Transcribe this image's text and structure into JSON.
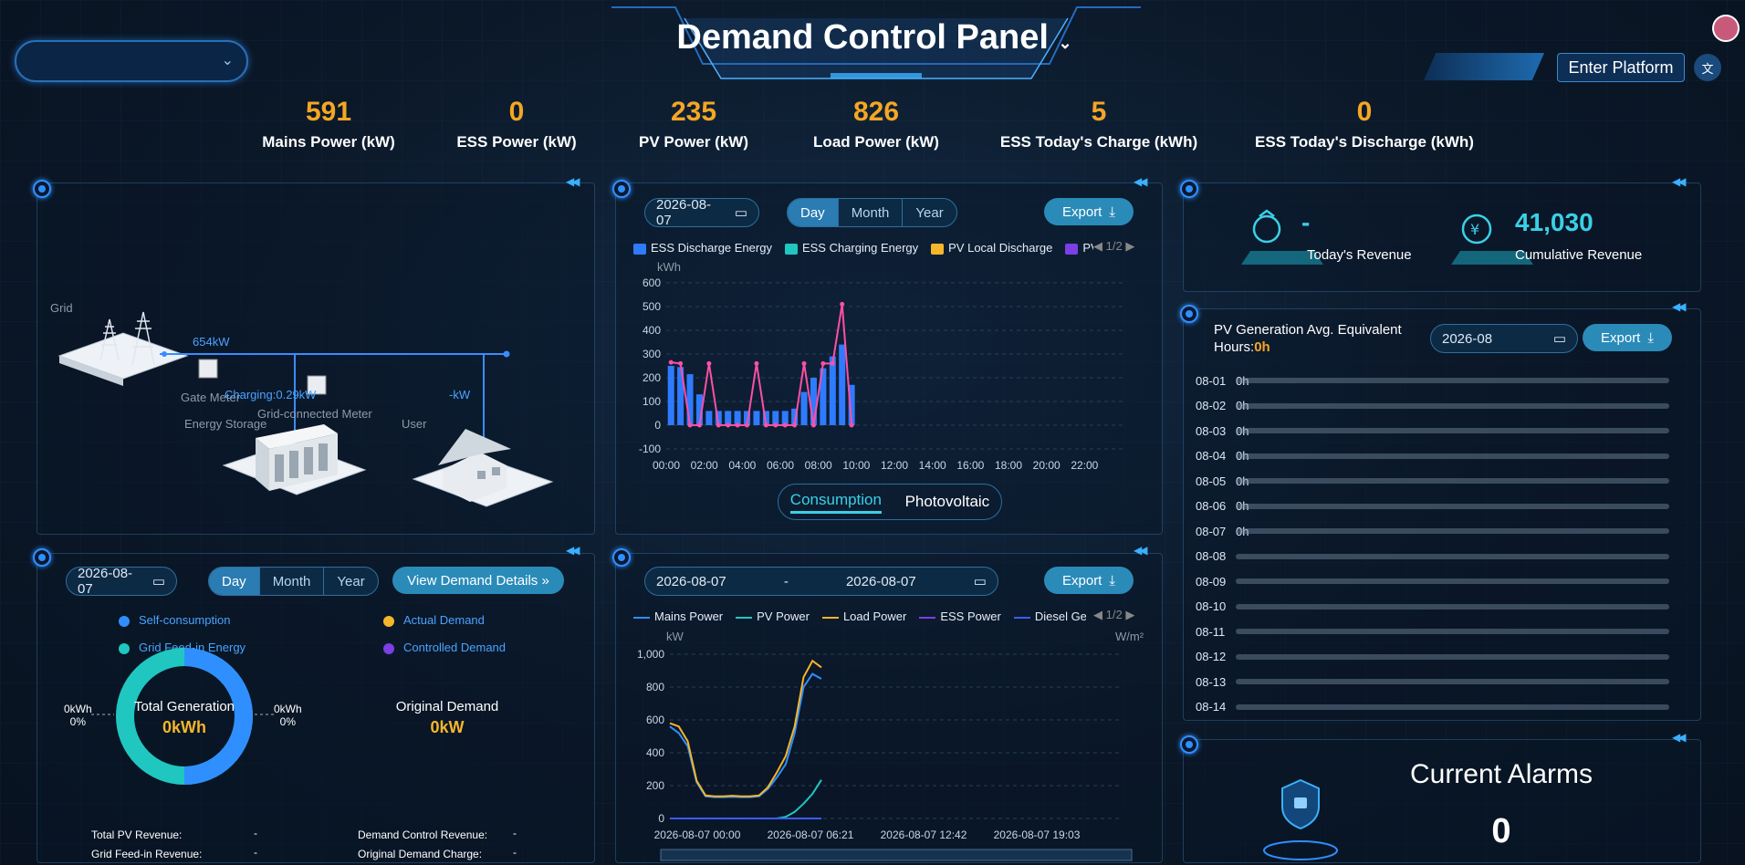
{
  "header": {
    "title": "Demand Control Panel",
    "enter_platform": "Enter Platform",
    "site_select": ""
  },
  "kpis": [
    {
      "value": "591",
      "label": "Mains Power (kW)"
    },
    {
      "value": "0",
      "label": "ESS Power (kW)"
    },
    {
      "value": "235",
      "label": "PV Power (kW)"
    },
    {
      "value": "826",
      "label": "Load Power (kW)"
    },
    {
      "value": "5",
      "label": "ESS Today's Charge (kWh)"
    },
    {
      "value": "0",
      "label": "ESS Today's Discharge (kWh)"
    }
  ],
  "topology": {
    "grid": "Grid",
    "grid_power": "654kW",
    "gate_meter": "Gate Meter",
    "charging": "Charging:0.29kW",
    "grid_meter": "Grid-connected Meter",
    "user_power": "-kW",
    "energy_storage": "Energy Storage",
    "user": "User"
  },
  "energy_chart": {
    "date": "2026-08-07",
    "tabs": [
      "Day",
      "Month",
      "Year"
    ],
    "active_tab": "Day",
    "export": "Export",
    "legend": [
      "ESS Discharge Energy",
      "ESS Charging Energy",
      "PV Local Discharge",
      "PV l"
    ],
    "pager": "1/2",
    "unit": "kWh",
    "switch": [
      "Consumption",
      "Photovoltaic"
    ]
  },
  "chart_data": [
    {
      "type": "bar",
      "title": "",
      "ylabel": "kWh",
      "ylim": [
        -100,
        600
      ],
      "yticks": [
        "600",
        "500",
        "400",
        "300",
        "200",
        "100",
        "0",
        "-100"
      ],
      "xticks": [
        "00:00",
        "02:00",
        "04:00",
        "06:00",
        "08:00",
        "10:00",
        "12:00",
        "14:00",
        "16:00",
        "18:00",
        "20:00",
        "22:00"
      ],
      "x": [
        0.25,
        0.75,
        1.25,
        1.75,
        2.25,
        2.75,
        3.25,
        3.75,
        4.25,
        4.75,
        5.25,
        5.75,
        6.25,
        6.75,
        7.25,
        7.75,
        8.25,
        8.75,
        9.25,
        9.75
      ],
      "series": [
        {
          "name": "ESS Discharge Energy",
          "color": "#2f7bff",
          "values": [
            250,
            245,
            215,
            130,
            60,
            60,
            60,
            60,
            60,
            60,
            60,
            60,
            60,
            70,
            140,
            200,
            240,
            290,
            340,
            170
          ]
        },
        {
          "name": "ESS Charging Energy",
          "color": "#1fc7c0",
          "values": [
            0,
            0,
            0,
            0,
            0,
            0,
            0,
            0,
            0,
            0,
            0,
            0,
            0,
            0,
            0,
            0,
            0,
            0,
            0,
            0
          ]
        },
        {
          "name": "PV Local Discharge",
          "color": "#f5b62b",
          "values": [
            0,
            0,
            0,
            0,
            0,
            0,
            0,
            0,
            0,
            0,
            0,
            0,
            0,
            0,
            0,
            0,
            0,
            0,
            0,
            0
          ]
        },
        {
          "name": "PV l",
          "color": "#7b3fe4",
          "values": [
            0,
            0,
            0,
            0,
            0,
            0,
            0,
            0,
            0,
            0,
            0,
            0,
            0,
            0,
            0,
            0,
            0,
            0,
            0,
            0
          ]
        },
        {
          "type": "line",
          "color": "#ff4fa6",
          "values": [
            265,
            260,
            0,
            0,
            260,
            0,
            0,
            0,
            0,
            260,
            0,
            0,
            0,
            0,
            260,
            0,
            260,
            260,
            510,
            0
          ]
        }
      ]
    },
    {
      "type": "line",
      "title": "",
      "ylabel": "kW",
      "y2label": "W/m²",
      "ylim": [
        0,
        1000
      ],
      "yticks": [
        "1,000",
        "800",
        "600",
        "400",
        "200",
        "0"
      ],
      "xticks": [
        "2026-08-07 00:00",
        "2026-08-07 06:21",
        "2026-08-07 12:42",
        "2026-08-07 19:03"
      ],
      "x_hours": [
        0,
        0.5,
        1,
        1.5,
        2,
        2.5,
        3,
        3.5,
        4,
        4.5,
        5,
        5.5,
        6,
        6.5,
        7,
        7.5,
        8,
        8.5,
        9,
        9.5
      ],
      "series": [
        {
          "name": "Mains Power",
          "color": "#2f8fff",
          "values": [
            560,
            520,
            440,
            220,
            135,
            130,
            130,
            132,
            130,
            130,
            135,
            180,
            250,
            330,
            520,
            800,
            880,
            850,
            0,
            0
          ]
        },
        {
          "name": "PV Power",
          "color": "#1fc7c0",
          "values": [
            0,
            0,
            0,
            0,
            0,
            0,
            0,
            0,
            0,
            0,
            0,
            0,
            0,
            10,
            40,
            90,
            150,
            235,
            0,
            0
          ]
        },
        {
          "name": "Load Power",
          "color": "#f5b62b",
          "values": [
            580,
            560,
            470,
            230,
            140,
            135,
            135,
            138,
            135,
            135,
            140,
            190,
            280,
            380,
            560,
            860,
            960,
            920,
            0,
            0
          ]
        },
        {
          "name": "ESS Power",
          "color": "#7b3fe4",
          "values": [
            0,
            0,
            0,
            0,
            0,
            0,
            0,
            0,
            0,
            0,
            0,
            0,
            0,
            0,
            0,
            0,
            0,
            0,
            0,
            0
          ]
        },
        {
          "name": "Diesel Generat",
          "color": "#3a5cff",
          "values": [
            0,
            0,
            0,
            0,
            0,
            0,
            0,
            0,
            0,
            0,
            0,
            0,
            0,
            0,
            0,
            0,
            0,
            0,
            0,
            0
          ]
        }
      ]
    }
  ],
  "power_chart": {
    "start": "2026-08-07",
    "end": "2026-08-07",
    "sep": "-",
    "export": "Export",
    "pager": "1/2",
    "unit_left": "kW",
    "unit_right": "W/m²",
    "legend": [
      "Mains Power",
      "PV Power",
      "Load Power",
      "ESS Power",
      "Diesel Generat"
    ]
  },
  "demand": {
    "date": "2026-08-07",
    "tabs": [
      "Day",
      "Month",
      "Year"
    ],
    "active_tab": "Day",
    "details": "View Demand Details »",
    "legend": [
      "Self-consumption",
      "Grid Feed-in Energy",
      "Actual Demand",
      "Controlled Demand"
    ],
    "left_val": "0kWh",
    "left_pct": "0%",
    "right_val": "0kWh",
    "right_pct": "0%",
    "total_label": "Total Generation",
    "total_value": "0kWh",
    "orig_label": "Original Demand",
    "orig_value": "0kW",
    "pv_rev_label": "Total PV Revenue:",
    "pv_rev": "-",
    "feed_rev_label": "Grid Feed-in Revenue:",
    "feed_rev": "-",
    "dc_rev_label": "Demand Control Revenue:",
    "dc_rev": "-",
    "orig_charge_label": "Original Demand Charge:",
    "orig_charge": "-"
  },
  "revenue": {
    "today_value": "-",
    "today_label": "Today's Revenue",
    "cum_value": "41,030",
    "cum_label": "Cumulative Revenue"
  },
  "pv_hours": {
    "title": "PV Generation Avg. Equivalent Hours:",
    "value": "0h",
    "month": "2026-08",
    "export": "Export",
    "rows": [
      {
        "d": "08-01",
        "h": "0h"
      },
      {
        "d": "08-02",
        "h": "0h"
      },
      {
        "d": "08-03",
        "h": "0h"
      },
      {
        "d": "08-04",
        "h": "0h"
      },
      {
        "d": "08-05",
        "h": "0h"
      },
      {
        "d": "08-06",
        "h": "0h"
      },
      {
        "d": "08-07",
        "h": "0h"
      },
      {
        "d": "08-08",
        "h": ""
      },
      {
        "d": "08-09",
        "h": ""
      },
      {
        "d": "08-10",
        "h": ""
      },
      {
        "d": "08-11",
        "h": ""
      },
      {
        "d": "08-12",
        "h": ""
      },
      {
        "d": "08-13",
        "h": ""
      },
      {
        "d": "08-14",
        "h": ""
      }
    ]
  },
  "alarms": {
    "title": "Current Alarms",
    "value": "0"
  }
}
